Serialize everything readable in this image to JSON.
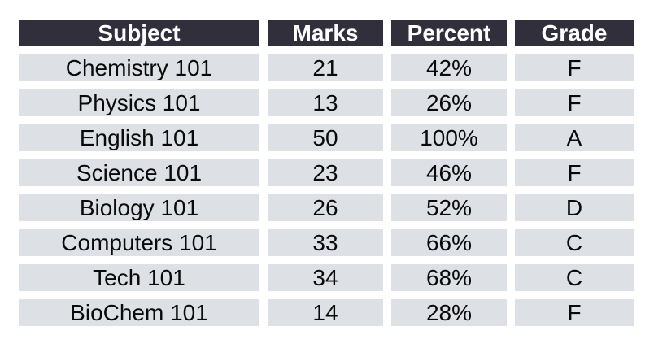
{
  "colors": {
    "page_bg": "#ffffff",
    "header_bg": "#322f3d",
    "header_text": "#ffffff",
    "row_bg": "#dde1e5",
    "cell_text": "#0a0a0a"
  },
  "chart_data": {
    "type": "table",
    "title": "",
    "columns": [
      "Subject",
      "Marks",
      "Percent",
      "Grade"
    ],
    "rows": [
      [
        "Chemistry 101",
        "21",
        "42%",
        "F"
      ],
      [
        "Physics 101",
        "13",
        "26%",
        "F"
      ],
      [
        "English 101",
        "50",
        "100%",
        "A"
      ],
      [
        "Science 101",
        "23",
        "46%",
        "F"
      ],
      [
        "Biology 101",
        "26",
        "52%",
        "D"
      ],
      [
        "Computers 101",
        "33",
        "66%",
        "C"
      ],
      [
        "Tech 101",
        "34",
        "68%",
        "C"
      ],
      [
        "BioChem 101",
        "14",
        "28%",
        "F"
      ]
    ]
  }
}
